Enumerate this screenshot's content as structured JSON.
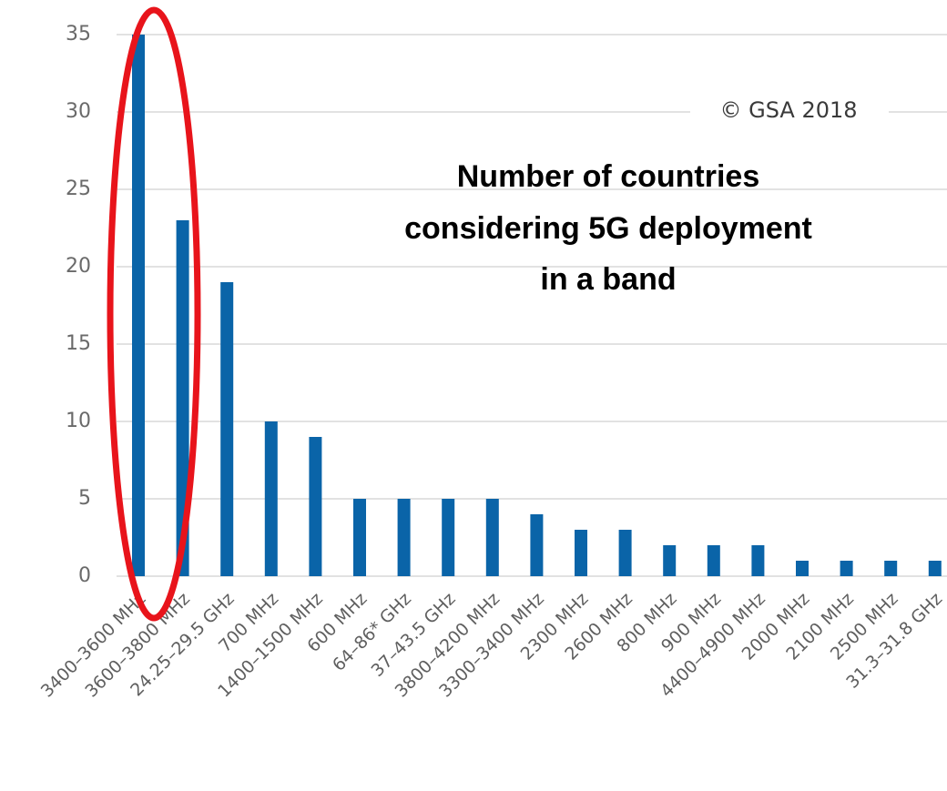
{
  "chart_data": {
    "type": "bar",
    "title_lines": [
      "Number of countries",
      "considering 5G deployment",
      "in a band"
    ],
    "annotation": "© GSA 2018",
    "categories": [
      "3400–3600 MHz",
      "3600–3800 MHz",
      "24.25–29.5 GHz",
      "700 MHz",
      "1400–1500 MHz",
      "600  MHz",
      "64–86* GHz",
      "37–43.5 GHz",
      "3800–4200 MHz",
      "3300–3400 MHz",
      "2300 MHz",
      "2600 MHz",
      "800 MHz",
      "900 MHz",
      "4400–4900 MHz",
      "2000 MHz",
      "2100 MHz",
      "2500 MHz",
      "31.3–31.8 GHz"
    ],
    "values": [
      35,
      23,
      19,
      10,
      9,
      5,
      5,
      5,
      5,
      4,
      3,
      3,
      2,
      2,
      2,
      1,
      1,
      1,
      1
    ],
    "yticks": [
      0,
      5,
      10,
      15,
      20,
      25,
      30,
      35
    ],
    "ylim": [
      0,
      35
    ],
    "grid": true,
    "highlight": {
      "categories": [
        0,
        1
      ],
      "color": "#e8141b"
    },
    "colors": {
      "bar": "#0a64a8",
      "grid": "#d9d9d9"
    }
  }
}
